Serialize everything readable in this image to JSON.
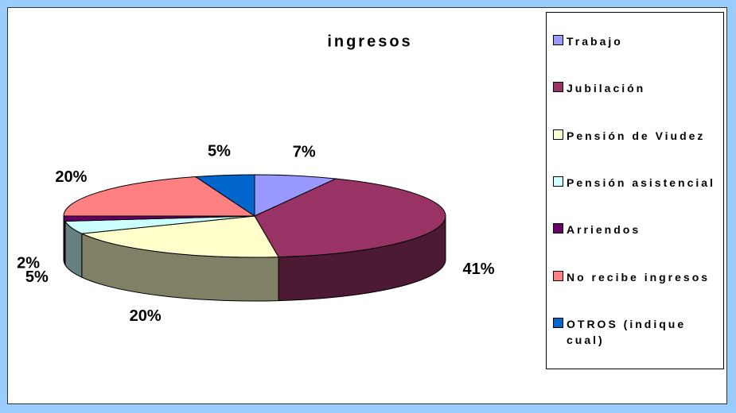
{
  "chart_data": {
    "type": "pie3d",
    "title": "ingresos",
    "categories": [
      "Trabajo",
      "Jubilación",
      "Pensión de Viudez",
      "Pensión asistencial",
      "Arriendos",
      "No recibe ingresos",
      "OTROS (indique cual)"
    ],
    "values": [
      7,
      41,
      20,
      5,
      2,
      20,
      5
    ],
    "value_labels": [
      "7%",
      "41%",
      "20%",
      "5%",
      "2%",
      "20%",
      "5%"
    ],
    "colors": [
      "#9999ff",
      "#993366",
      "#ffffcc",
      "#ccffff",
      "#660066",
      "#ff8080",
      "#0066cc"
    ],
    "legend": "right"
  }
}
